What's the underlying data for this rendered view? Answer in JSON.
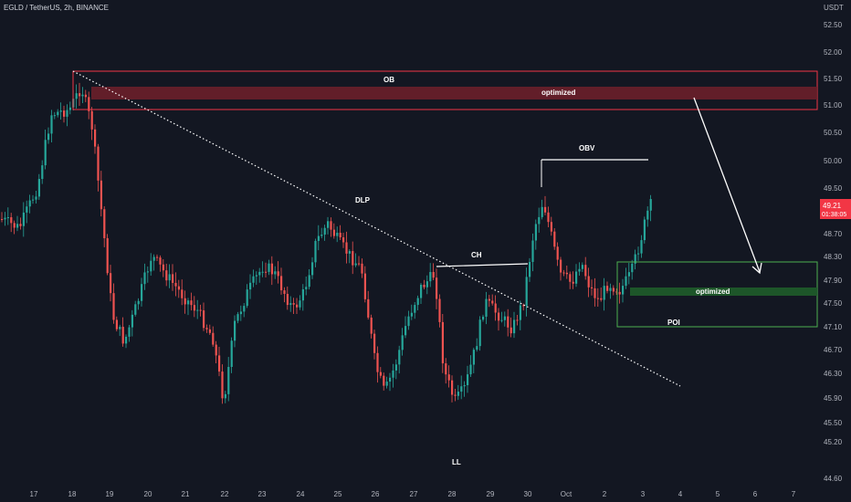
{
  "header": {
    "symbol_line": "EGLD / TetherUS, 2h, BINANCE"
  },
  "price_axis": {
    "unit": "USDT",
    "labels": [
      "52.50",
      "52.00",
      "51.50",
      "51.00",
      "50.50",
      "50.00",
      "49.50",
      "48.70",
      "48.30",
      "47.90",
      "47.50",
      "47.10",
      "46.70",
      "46.30",
      "45.90",
      "45.50",
      "45.20",
      "44.60"
    ]
  },
  "time_axis": {
    "labels": [
      "17",
      "18",
      "19",
      "20",
      "21",
      "22",
      "23",
      "24",
      "25",
      "26",
      "27",
      "28",
      "29",
      "30",
      "Oct",
      "2",
      "3",
      "4",
      "5",
      "6",
      "7"
    ]
  },
  "last_price": {
    "value": "49.21",
    "countdown": "01:38:05",
    "color": "#f23645"
  },
  "colors": {
    "up": "#26a69a",
    "down": "#ef5350",
    "background": "#131722",
    "ob_zone": "#f23645",
    "poi_zone": "#4caf50"
  },
  "chart_data": {
    "type": "candlestick",
    "title": "EGLD / TetherUS, 2h, BINANCE",
    "ylim": [
      44.5,
      52.7
    ],
    "annotations": {
      "ob": {
        "label": "OB",
        "top": 51.62,
        "bottom": 50.93
      },
      "ob_optimized": {
        "label": "optimized",
        "top": 51.33,
        "bottom": 51.13
      },
      "poi": {
        "label": "POI",
        "top": 48.22,
        "bottom": 47.07
      },
      "poi_optimized": {
        "label": "optimized",
        "top": 47.75,
        "bottom": 47.63
      },
      "obv": {
        "label": "OBV",
        "price": 50.02
      },
      "ch": {
        "label": "CH",
        "price": 48.2
      },
      "dlp": {
        "label": "DLP"
      },
      "ll": {
        "label": "LL",
        "price": 45.2
      }
    }
  }
}
